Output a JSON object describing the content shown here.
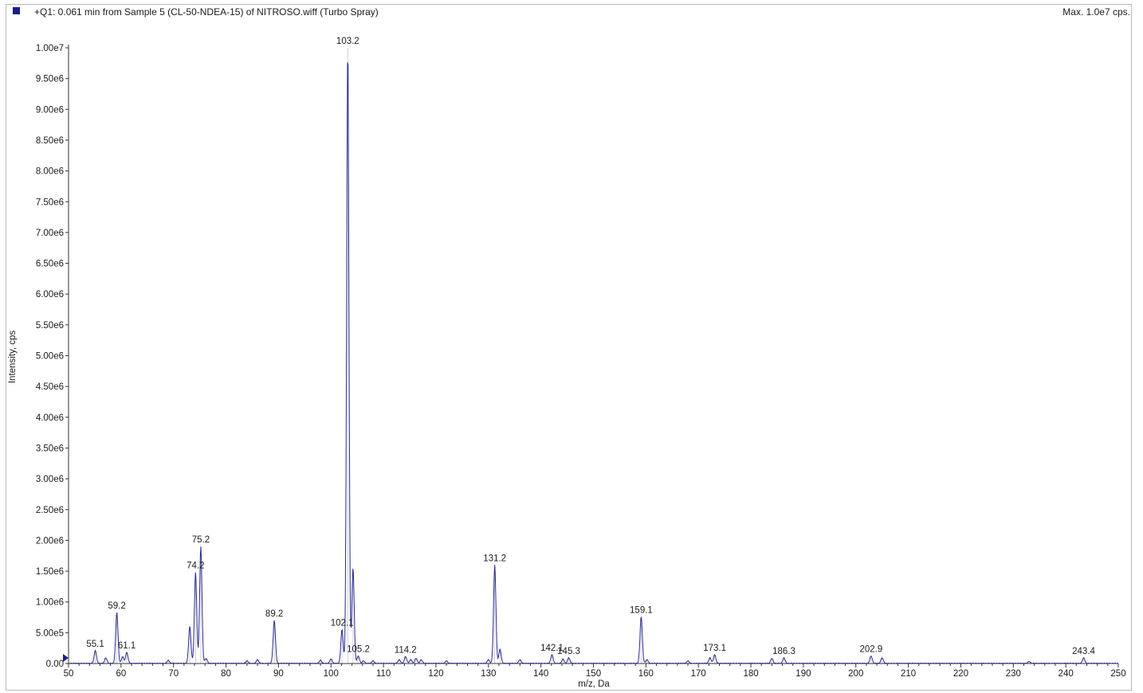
{
  "header": {
    "title": "+Q1: 0.061 min from Sample 5 (CL-50-NDEA-15) of NITROSO.wiff (Turbo Spray)",
    "max_label": "Max. 1.0e7 cps."
  },
  "colors": {
    "trace": "#2b2b8c",
    "legend_marker": "#1c1c8c",
    "axis": "#333333"
  },
  "chart_data": {
    "type": "line",
    "xlabel": "m/z, Da",
    "ylabel": "Intensity, cps",
    "xlim": [
      50,
      250
    ],
    "ylim": [
      0,
      10000000
    ],
    "x_ticks": [
      50,
      60,
      70,
      80,
      90,
      100,
      110,
      120,
      130,
      140,
      150,
      160,
      170,
      180,
      190,
      200,
      210,
      220,
      230,
      240,
      250
    ],
    "y_ticks": [
      0,
      500000,
      1000000,
      1500000,
      2000000,
      2500000,
      3000000,
      3500000,
      4000000,
      4500000,
      5000000,
      5500000,
      6000000,
      6500000,
      7000000,
      7500000,
      8000000,
      8500000,
      9000000,
      9500000,
      10000000
    ],
    "y_tick_labels": [
      "0.00",
      "5.00e5",
      "1.00e6",
      "1.50e6",
      "2.00e6",
      "2.50e6",
      "3.00e6",
      "3.50e6",
      "4.00e6",
      "4.50e6",
      "5.00e6",
      "5.50e6",
      "6.00e6",
      "6.50e6",
      "7.00e6",
      "7.50e6",
      "8.00e6",
      "8.50e6",
      "9.00e6",
      "9.50e6",
      "1.00e7"
    ],
    "series": [
      {
        "peaks": [
          {
            "x": 55.1,
            "y": 210000
          },
          {
            "x": 57.1,
            "y": 90000
          },
          {
            "x": 59.2,
            "y": 830000
          },
          {
            "x": 60.3,
            "y": 110000
          },
          {
            "x": 61.1,
            "y": 180000
          },
          {
            "x": 69.0,
            "y": 50000
          },
          {
            "x": 73.1,
            "y": 600000
          },
          {
            "x": 74.2,
            "y": 1480000
          },
          {
            "x": 75.2,
            "y": 1900000
          },
          {
            "x": 76.2,
            "y": 80000
          },
          {
            "x": 84.0,
            "y": 40000
          },
          {
            "x": 86.0,
            "y": 60000
          },
          {
            "x": 89.2,
            "y": 700000
          },
          {
            "x": 98.0,
            "y": 50000
          },
          {
            "x": 100.0,
            "y": 70000
          },
          {
            "x": 102.1,
            "y": 550000
          },
          {
            "x": 103.2,
            "y": 10000000
          },
          {
            "x": 104.2,
            "y": 1550000
          },
          {
            "x": 105.2,
            "y": 120000
          },
          {
            "x": 106.2,
            "y": 40000
          },
          {
            "x": 108.0,
            "y": 40000
          },
          {
            "x": 113.0,
            "y": 60000
          },
          {
            "x": 114.2,
            "y": 110000
          },
          {
            "x": 115.2,
            "y": 60000
          },
          {
            "x": 116.2,
            "y": 80000
          },
          {
            "x": 117.2,
            "y": 60000
          },
          {
            "x": 122.0,
            "y": 40000
          },
          {
            "x": 130.0,
            "y": 60000
          },
          {
            "x": 131.2,
            "y": 1600000
          },
          {
            "x": 132.2,
            "y": 230000
          },
          {
            "x": 136.0,
            "y": 60000
          },
          {
            "x": 142.1,
            "y": 140000
          },
          {
            "x": 144.2,
            "y": 70000
          },
          {
            "x": 145.3,
            "y": 90000
          },
          {
            "x": 159.1,
            "y": 760000
          },
          {
            "x": 160.2,
            "y": 60000
          },
          {
            "x": 168.0,
            "y": 40000
          },
          {
            "x": 172.2,
            "y": 90000
          },
          {
            "x": 173.1,
            "y": 140000
          },
          {
            "x": 184.0,
            "y": 80000
          },
          {
            "x": 186.3,
            "y": 90000
          },
          {
            "x": 202.9,
            "y": 120000
          },
          {
            "x": 205.0,
            "y": 90000
          },
          {
            "x": 233.0,
            "y": 30000
          },
          {
            "x": 243.4,
            "y": 90000
          }
        ]
      }
    ],
    "annotations": [
      {
        "x": 55.1,
        "y": 210000,
        "text": "55.1"
      },
      {
        "x": 59.2,
        "y": 830000,
        "text": "59.2"
      },
      {
        "x": 61.1,
        "y": 180000,
        "text": "61.1"
      },
      {
        "x": 74.2,
        "y": 1480000,
        "text": "74.2"
      },
      {
        "x": 75.2,
        "y": 1900000,
        "text": "75.2"
      },
      {
        "x": 89.2,
        "y": 700000,
        "text": "89.2"
      },
      {
        "x": 102.1,
        "y": 550000,
        "text": "102.1"
      },
      {
        "x": 103.2,
        "y": 10000000,
        "text": "103.2"
      },
      {
        "x": 105.2,
        "y": 120000,
        "text": "105.2"
      },
      {
        "x": 114.2,
        "y": 110000,
        "text": "114.2"
      },
      {
        "x": 131.2,
        "y": 1600000,
        "text": "131.2"
      },
      {
        "x": 142.1,
        "y": 140000,
        "text": "142.1"
      },
      {
        "x": 145.3,
        "y": 90000,
        "text": "145.3"
      },
      {
        "x": 159.1,
        "y": 760000,
        "text": "159.1"
      },
      {
        "x": 173.1,
        "y": 140000,
        "text": "173.1"
      },
      {
        "x": 186.3,
        "y": 90000,
        "text": "186.3"
      },
      {
        "x": 202.9,
        "y": 120000,
        "text": "202.9"
      },
      {
        "x": 243.4,
        "y": 90000,
        "text": "243.4"
      }
    ]
  }
}
